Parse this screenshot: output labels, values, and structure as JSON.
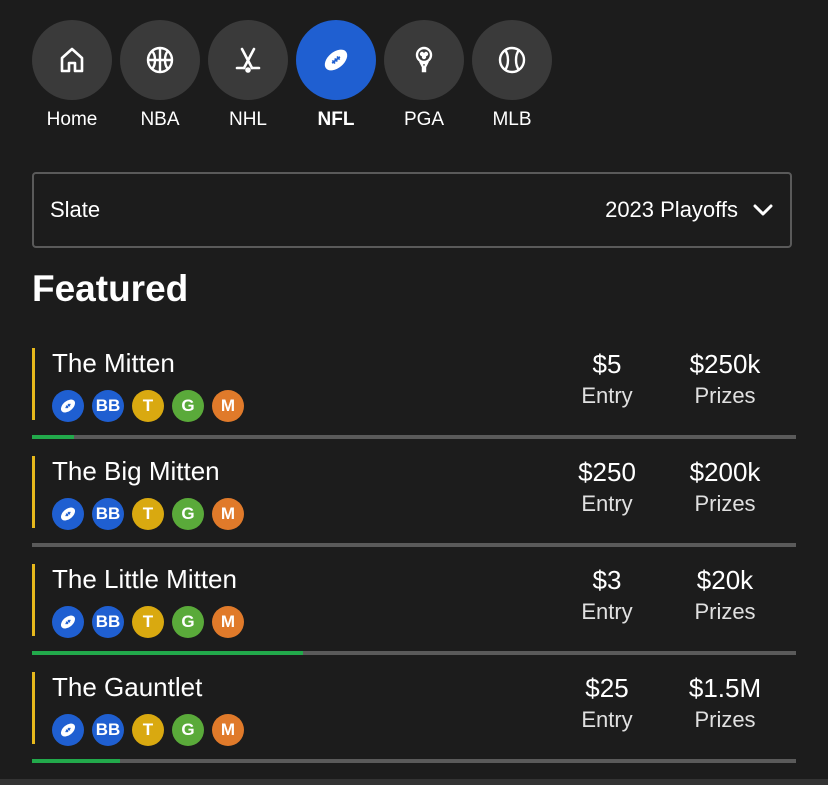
{
  "nav": {
    "items": [
      {
        "label": "Home",
        "icon": "home-icon",
        "active": false
      },
      {
        "label": "NBA",
        "icon": "basketball-icon",
        "active": false
      },
      {
        "label": "NHL",
        "icon": "hockey-icon",
        "active": false
      },
      {
        "label": "NFL",
        "icon": "football-icon",
        "active": true
      },
      {
        "label": "PGA",
        "icon": "golf-icon",
        "active": false
      },
      {
        "label": "MLB",
        "icon": "baseball-icon",
        "active": false
      }
    ]
  },
  "slate": {
    "label": "Slate",
    "value": "2023 Playoffs"
  },
  "featured": {
    "title": "Featured"
  },
  "badges": [
    "football-icon",
    "BB",
    "T",
    "G",
    "M"
  ],
  "contests": [
    {
      "name": "The Mitten",
      "entry": "$5",
      "entry_label": "Entry",
      "prizes": "$250k",
      "prizes_label": "Prizes",
      "progress": 0.055
    },
    {
      "name": "The Big Mitten",
      "entry": "$250",
      "entry_label": "Entry",
      "prizes": "$200k",
      "prizes_label": "Prizes",
      "progress": 0
    },
    {
      "name": "The Little Mitten",
      "entry": "$3",
      "entry_label": "Entry",
      "prizes": "$20k",
      "prizes_label": "Prizes",
      "progress": 0.355
    },
    {
      "name": "The Gauntlet",
      "entry": "$25",
      "entry_label": "Entry",
      "prizes": "$1.5M",
      "prizes_label": "Prizes",
      "progress": 0.115
    }
  ],
  "colors": {
    "background": "#1c1c1c",
    "accent_blue": "#1f5fd1",
    "accent_yellow": "#e6b81c",
    "progress_green": "#22a94b"
  }
}
